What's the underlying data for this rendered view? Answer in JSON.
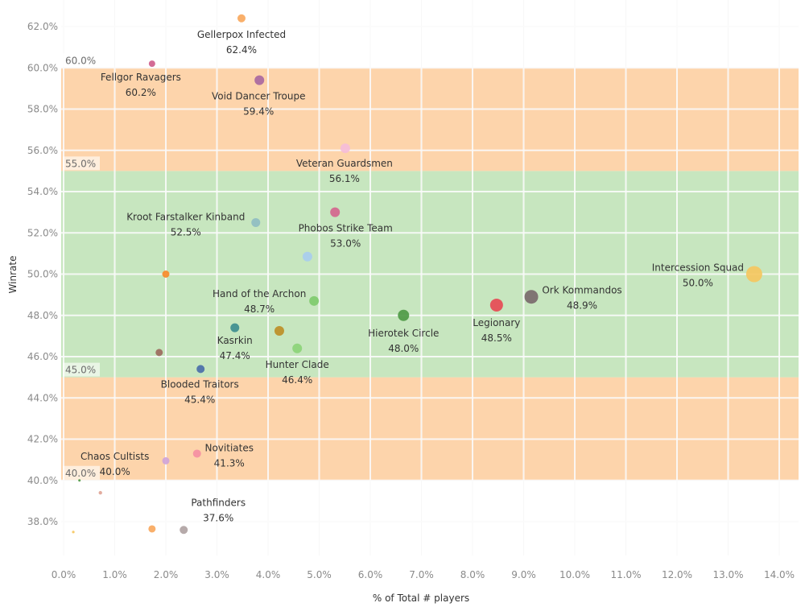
{
  "chart_data": {
    "type": "scatter",
    "title": "",
    "xlabel": "% of Total # players",
    "ylabel": "Winrate",
    "xlim": [
      0,
      14
    ],
    "ylim": [
      37.2,
      63.2
    ],
    "x_ticks": [
      "0.0%",
      "1.0%",
      "2.0%",
      "3.0%",
      "4.0%",
      "5.0%",
      "6.0%",
      "7.0%",
      "8.0%",
      "9.0%",
      "10.0%",
      "11.0%",
      "12.0%",
      "13.0%",
      "14.0%"
    ],
    "y_ticks": [
      "38.0%",
      "40.0%",
      "42.0%",
      "44.0%",
      "46.0%",
      "48.0%",
      "50.0%",
      "52.0%",
      "54.0%",
      "56.0%",
      "58.0%",
      "60.0%",
      "62.0%"
    ],
    "grid": true,
    "bands": [
      {
        "from": 40,
        "to": 45,
        "color": "#fdd4ab",
        "label": "40.0%"
      },
      {
        "from": 45,
        "to": 55,
        "color": "#c7e6bf",
        "label": "45.0%"
      },
      {
        "from": 55,
        "to": 60,
        "color": "#fdd4ab",
        "label": "55.0%"
      },
      {
        "from": 60,
        "to": 60,
        "color": "none",
        "label": "60.0%"
      }
    ],
    "points": [
      {
        "name": "Gellerpox Infected",
        "x": 3.48,
        "y": 62.4,
        "label": "62.4%",
        "color": "#f9a85d",
        "size": 5,
        "show_label": true
      },
      {
        "name": "Fellgor Ravagers",
        "x": 1.73,
        "y": 60.2,
        "label": "60.2%",
        "color": "#cf5e8c",
        "size": 4,
        "show_label": true
      },
      {
        "name": "Void Dancer Troupe",
        "x": 3.83,
        "y": 59.4,
        "label": "59.4%",
        "color": "#a9689f",
        "size": 6,
        "show_label": true
      },
      {
        "name": "Veteran Guardsmen",
        "x": 5.51,
        "y": 56.1,
        "label": "56.1%",
        "color": "#f5bcd8",
        "size": 6,
        "show_label": true
      },
      {
        "name": "Phobos Strike Team",
        "x": 5.31,
        "y": 53.0,
        "label": "53.0%",
        "color": "#d4678e",
        "size": 6,
        "show_label": true
      },
      {
        "name": "Kroot Farstalker Kinband",
        "x": 3.76,
        "y": 52.5,
        "label": "52.5%",
        "color": "#8fbdc2",
        "size": 5.5,
        "show_label": true
      },
      {
        "name": "",
        "x": 4.77,
        "y": 50.85,
        "label": "",
        "color": "#a8cdee",
        "size": 6,
        "show_label": false
      },
      {
        "name": "",
        "x": 2.0,
        "y": 50.0,
        "label": "",
        "color": "#f68a2a",
        "size": 4.5,
        "show_label": false
      },
      {
        "name": "Intercession Squad",
        "x": 13.51,
        "y": 50.0,
        "label": "50.0%",
        "color": "#f5c75f",
        "size": 10,
        "show_label": true
      },
      {
        "name": "Ork Kommandos",
        "x": 9.15,
        "y": 48.9,
        "label": "48.9%",
        "color": "#7a6a6c",
        "size": 8.5,
        "show_label": true
      },
      {
        "name": "Hand of the Archon",
        "x": 4.9,
        "y": 48.7,
        "label": "48.7%",
        "color": "#7fcb6e",
        "size": 6,
        "show_label": true
      },
      {
        "name": "Legionary",
        "x": 8.47,
        "y": 48.5,
        "label": "48.5%",
        "color": "#e64b55",
        "size": 8,
        "show_label": true
      },
      {
        "name": "Hierotek Circle",
        "x": 6.65,
        "y": 48.0,
        "label": "48.0%",
        "color": "#4f9a46",
        "size": 7,
        "show_label": true
      },
      {
        "name": "Kasrkin",
        "x": 3.35,
        "y": 47.4,
        "label": "47.4%",
        "color": "#3e8e8f",
        "size": 5.5,
        "show_label": true
      },
      {
        "name": "",
        "x": 4.22,
        "y": 47.25,
        "label": "",
        "color": "#bd8f27",
        "size": 6,
        "show_label": false
      },
      {
        "name": "Hunter Clade",
        "x": 4.57,
        "y": 46.4,
        "label": "46.4%",
        "color": "#8cd478",
        "size": 6,
        "show_label": true
      },
      {
        "name": "",
        "x": 1.87,
        "y": 46.2,
        "label": "",
        "color": "#9c6b5e",
        "size": 4.5,
        "show_label": false
      },
      {
        "name": "Blooded Traitors",
        "x": 2.68,
        "y": 45.4,
        "label": "45.4%",
        "color": "#4a6fa9",
        "size": 5,
        "show_label": true
      },
      {
        "name": "Novitiates",
        "x": 2.61,
        "y": 41.3,
        "label": "41.3%",
        "color": "#f58fa2",
        "size": 5,
        "show_label": true
      },
      {
        "name": "",
        "x": 2.0,
        "y": 40.95,
        "label": "",
        "color": "#cfa4d8",
        "size": 4.5,
        "show_label": false
      },
      {
        "name": "Chaos Cultists",
        "x": 0.31,
        "y": 40.0,
        "label": "40.0%",
        "color": "#4f9a46",
        "size": 1.5,
        "show_label": true
      },
      {
        "name": "",
        "x": 0.72,
        "y": 39.4,
        "label": "",
        "color": "#e0a596",
        "size": 2.2,
        "show_label": false
      },
      {
        "name": "",
        "x": 0.19,
        "y": 37.5,
        "label": "",
        "color": "#f5c75f",
        "size": 1.6,
        "show_label": false
      },
      {
        "name": "",
        "x": 1.73,
        "y": 37.65,
        "label": "",
        "color": "#f9a85d",
        "size": 4.5,
        "show_label": false
      },
      {
        "name": "Pathfinders",
        "x": 2.35,
        "y": 37.6,
        "label": "37.6%",
        "color": "#b0a3a3",
        "size": 5,
        "show_label": true
      }
    ]
  }
}
